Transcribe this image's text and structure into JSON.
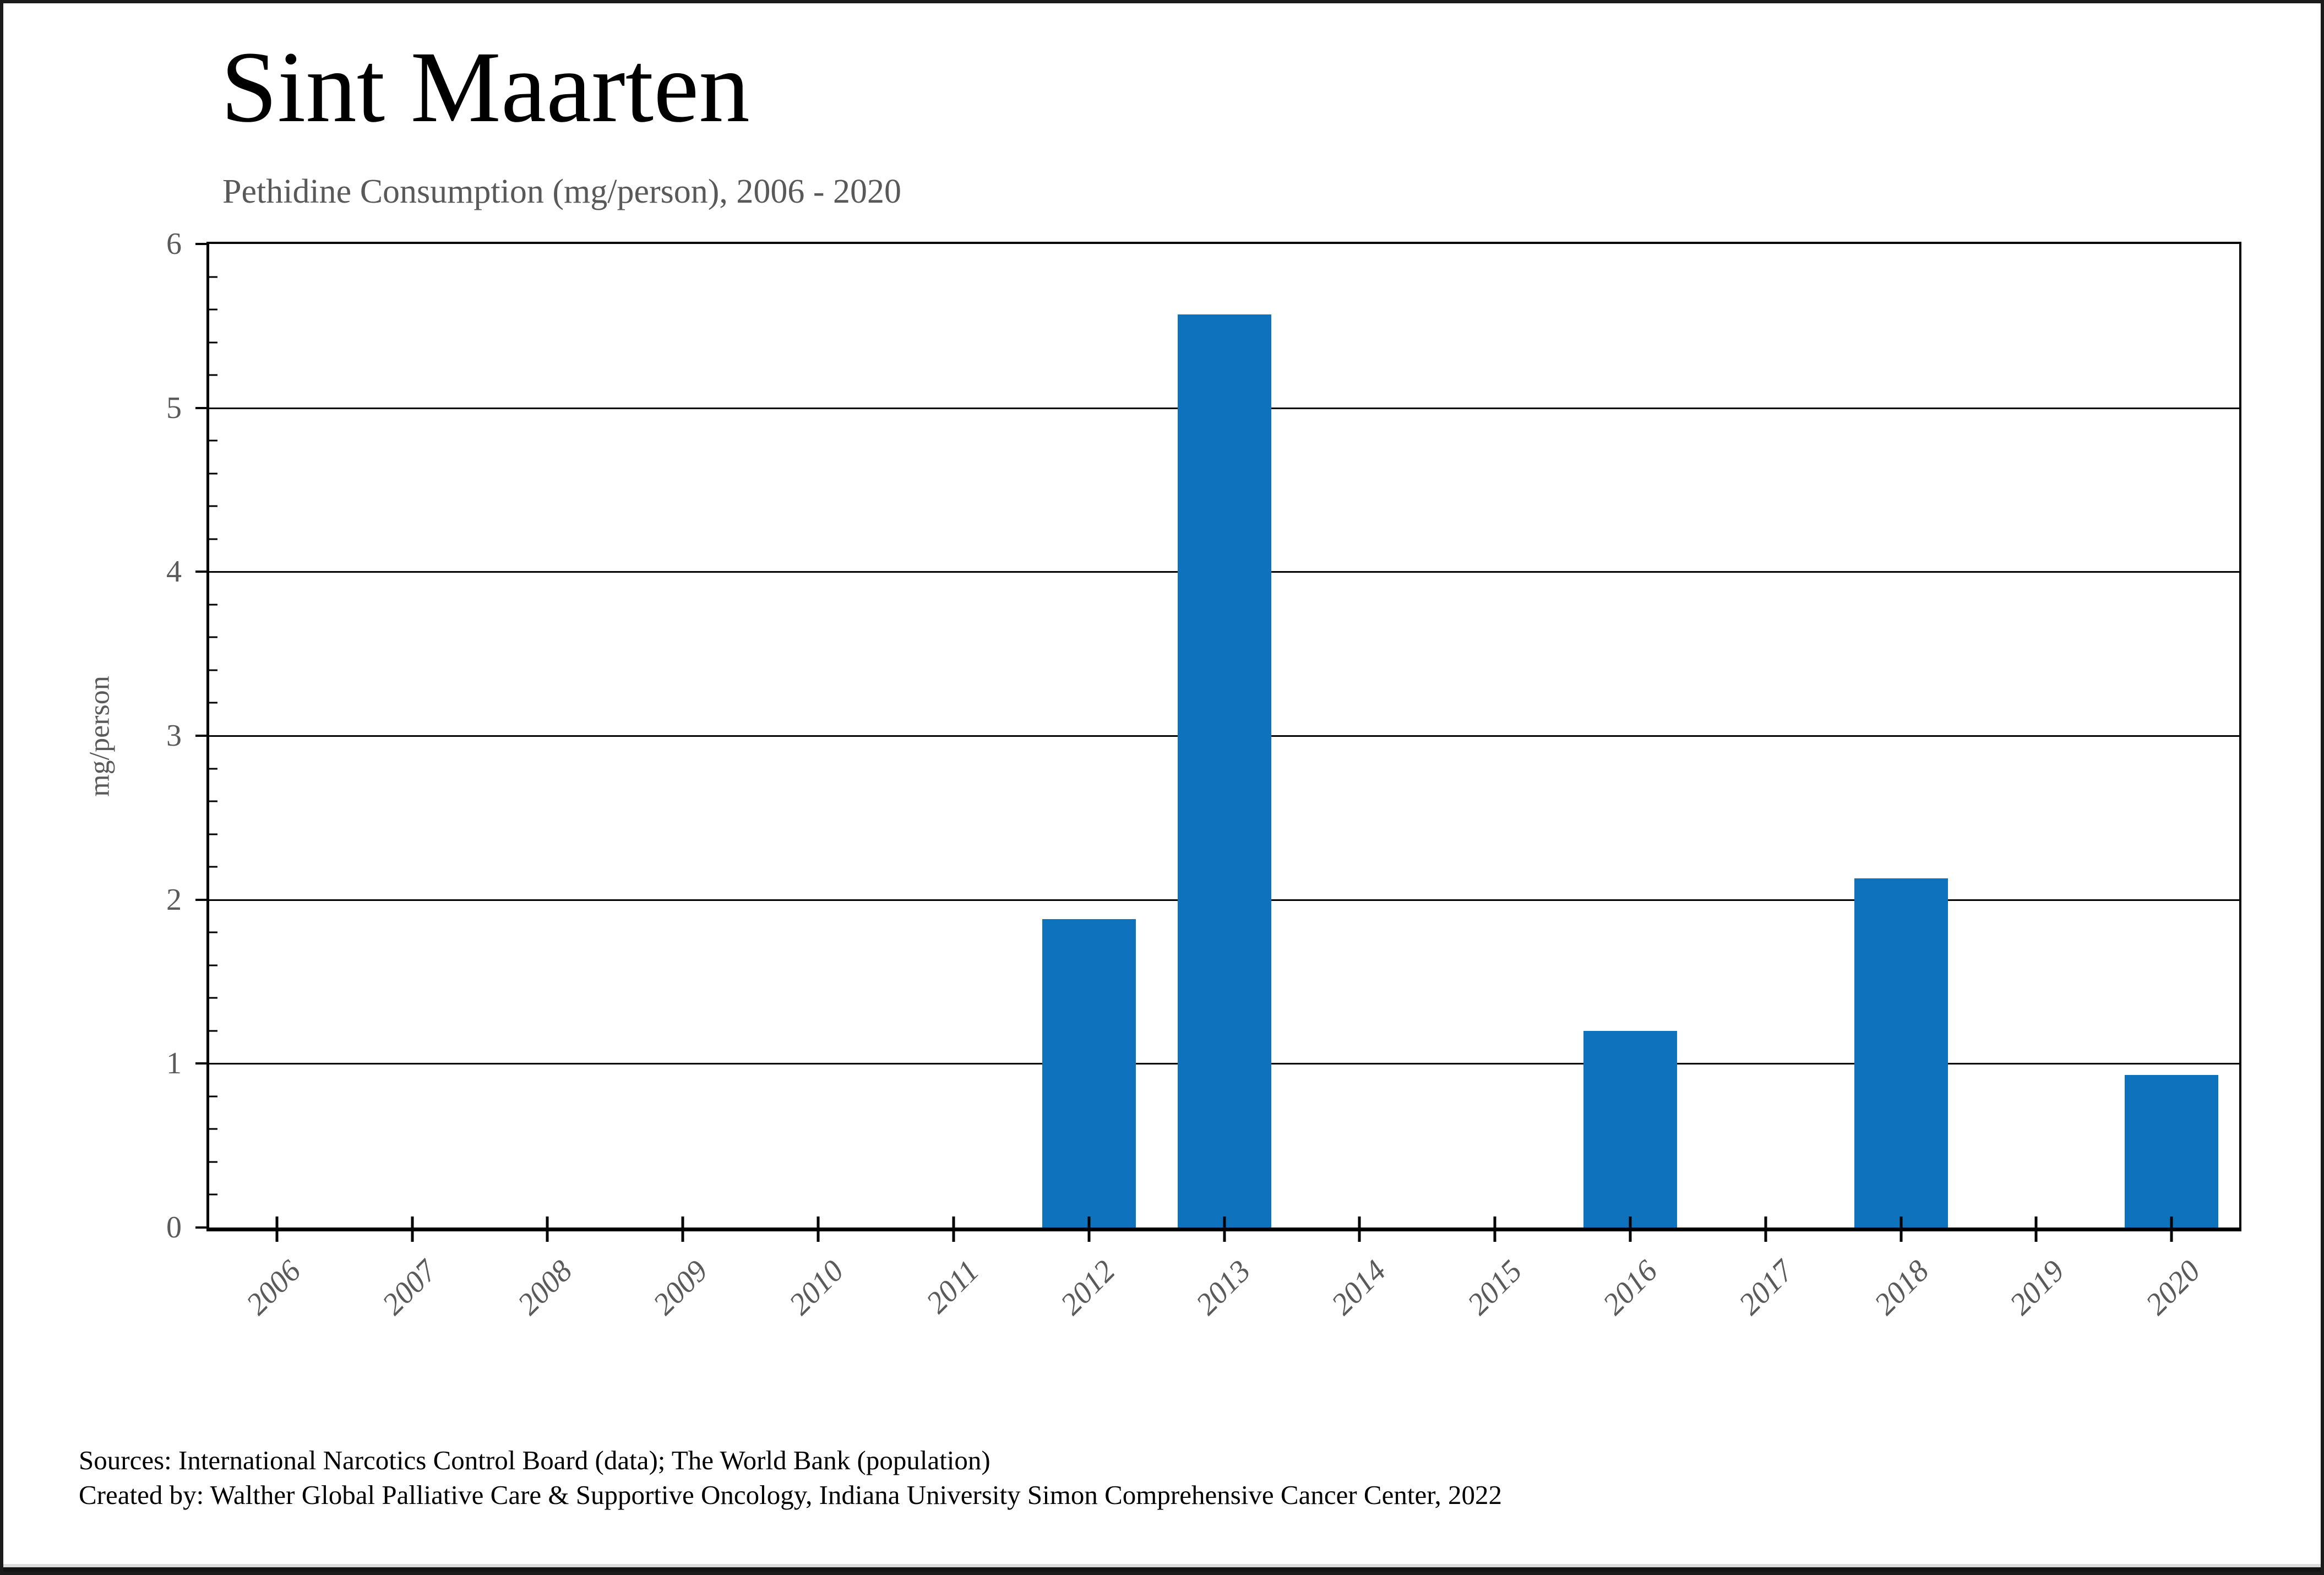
{
  "header": {
    "title": "Sint Maarten",
    "subtitle": "Pethidine Consumption (mg/person), 2006 - 2020"
  },
  "chart_data": {
    "type": "bar",
    "title": "Sint Maarten",
    "subtitle": "Pethidine Consumption (mg/person), 2006 - 2020",
    "categories": [
      "2006",
      "2007",
      "2008",
      "2009",
      "2010",
      "2011",
      "2012",
      "2013",
      "2014",
      "2015",
      "2016",
      "2017",
      "2018",
      "2019",
      "2020"
    ],
    "values": [
      0,
      0,
      0,
      0,
      0,
      0,
      1.88,
      5.57,
      0,
      0,
      1.2,
      0,
      2.13,
      0,
      0.93
    ],
    "xlabel": "",
    "ylabel": "mg/person",
    "ylim": [
      0,
      6
    ],
    "yticks": [
      0,
      1,
      2,
      3,
      4,
      5,
      6
    ],
    "minor_tick_step": 0.2,
    "grid": "horizontal-major",
    "legend": "none",
    "bar_color": "#0e72bd",
    "tick_label_color": "#5a5a5a",
    "subtitle_color": "#595959"
  },
  "footer": {
    "line1": "Sources: International Narcotics Control Board (data); The World Bank (population)",
    "line2": "Created by: Walther Global Palliative Care & Supportive Oncology, Indiana University Simon Comprehensive Cancer Center, 2022"
  }
}
